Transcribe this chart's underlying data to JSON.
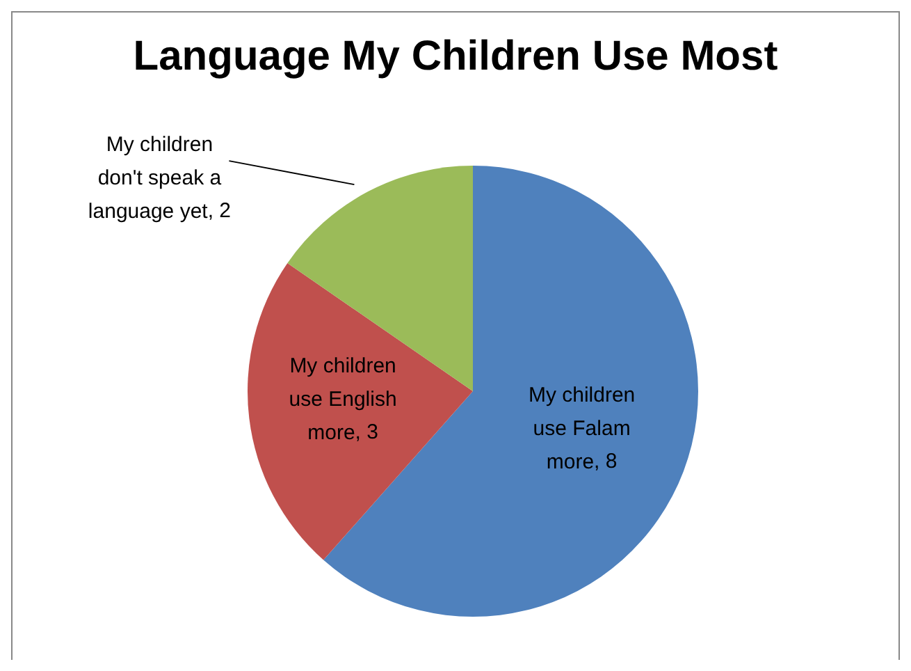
{
  "chart_data": {
    "type": "pie",
    "title": "Language My Children Use Most",
    "categories": [
      "My children use Falam more",
      "My children use English more",
      "My children don't speak a language yet"
    ],
    "values": [
      8,
      3,
      2
    ],
    "colors": [
      "#4f81bd",
      "#c0504d",
      "#9bbb59"
    ],
    "value_labels": [
      ", 8",
      ", 3",
      ", 2"
    ],
    "legend": false
  }
}
